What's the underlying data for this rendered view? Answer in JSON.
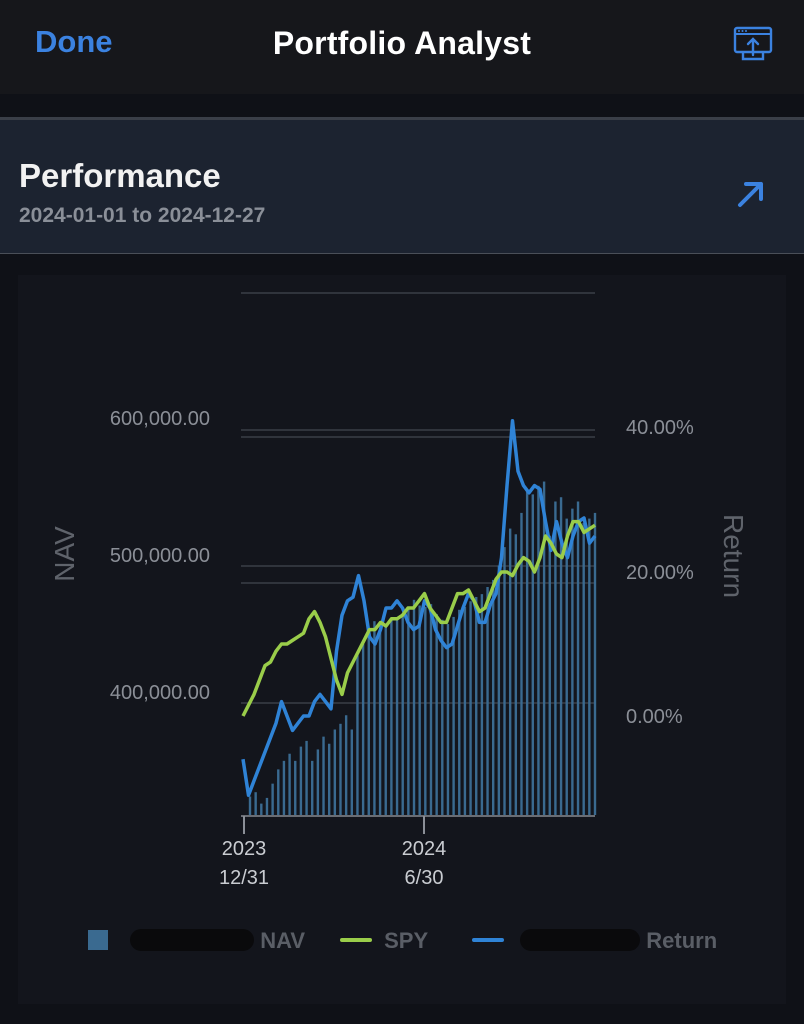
{
  "nav": {
    "done_label": "Done",
    "title": "Portfolio Analyst",
    "share_icon": "share-screen-icon"
  },
  "performance": {
    "title": "Performance",
    "range": "2024-01-01 to 2024-12-27",
    "expand_icon": "arrow-up-right-icon"
  },
  "colors": {
    "accent": "#3b82e0",
    "spy": "#9acd4a",
    "return_line": "#2f83d6",
    "nav_bars": "#3a6a90"
  },
  "chart_data": {
    "type": "line",
    "left_axis": {
      "label": "NAV",
      "ticks": [
        "600,000.00",
        "500,000.00",
        "400,000.00"
      ],
      "ylim": [
        340000,
        620000
      ]
    },
    "right_axis": {
      "label": "Return",
      "ticks": [
        "40.00%",
        "20.00%",
        "0.00%"
      ]
    },
    "x_ticks": [
      {
        "year": "2023",
        "date": "12/31"
      },
      {
        "year": "2024",
        "date": "6/30"
      }
    ],
    "x_range": [
      "2023-12-31",
      "2024-12-27"
    ],
    "nav_bars": [
      353,
      356,
      348,
      352,
      362,
      372,
      378,
      383,
      378,
      388,
      392,
      378,
      386,
      395,
      390,
      400,
      404,
      410,
      400,
      452,
      460,
      470,
      476,
      468,
      474,
      478,
      478,
      480,
      486,
      491,
      487,
      486,
      488,
      481,
      477,
      474,
      479,
      484,
      486,
      490,
      493,
      495,
      500,
      505,
      515,
      528,
      541,
      537,
      552,
      568,
      565,
      571,
      574,
      536,
      560,
      563,
      548,
      555,
      560,
      545,
      548,
      552
    ],
    "series": [
      {
        "name": "SPY",
        "values": [
          0,
          1.5,
          3,
          5,
          7,
          7.5,
          9,
          10,
          10,
          10.5,
          11,
          11.5,
          13.5,
          14.5,
          13,
          11,
          8,
          5,
          3,
          6,
          7.5,
          9,
          10.5,
          12,
          12,
          13,
          12.5,
          13.5,
          13.5,
          14,
          15,
          15,
          16,
          17,
          15,
          14,
          13,
          13,
          15,
          17,
          17,
          17.5,
          16,
          14.5,
          15,
          17,
          19,
          20,
          20,
          19.5,
          21,
          22,
          21.5,
          20,
          22,
          25,
          24,
          22.5,
          22,
          25,
          27,
          27,
          25.5,
          26,
          26.5
        ]
      },
      {
        "name": "",
        "values": [
          -6,
          -11,
          -9,
          -7,
          -5,
          -3,
          -1,
          2,
          0,
          -2,
          -1,
          0,
          0,
          2,
          3,
          2,
          1,
          9,
          14,
          16,
          16.5,
          19.5,
          16,
          11,
          10,
          12,
          15,
          15,
          16,
          15,
          13,
          12,
          12.5,
          16,
          15,
          12,
          10.5,
          9.5,
          10,
          12.5,
          15,
          17,
          16,
          13,
          13,
          15.5,
          17,
          22,
          32,
          41,
          34,
          32,
          31,
          32,
          31.5,
          27,
          23,
          27,
          24,
          22,
          25,
          27,
          27.5,
          24,
          25
        ]
      }
    ],
    "legend": [
      "NAV",
      "SPY",
      "Return"
    ],
    "grid": true
  }
}
